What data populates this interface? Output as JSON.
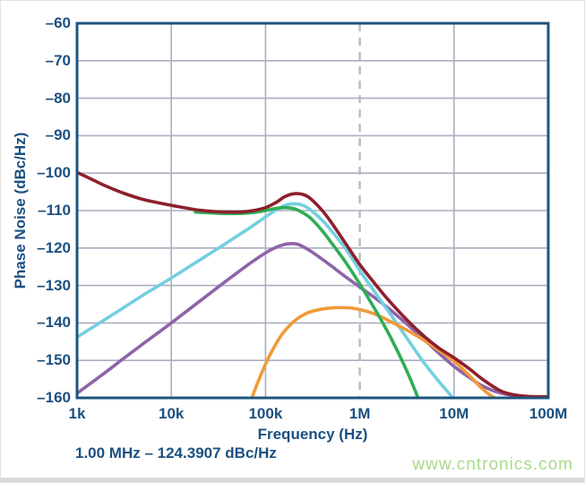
{
  "chart_data": {
    "type": "line",
    "title": "",
    "xlabel": "Frequency (Hz)",
    "ylabel": "Phase Noise (dBc/Hz)",
    "x_scale": "log",
    "xlim": [
      1000,
      100000000
    ],
    "ylim": [
      -160,
      -60
    ],
    "grid": true,
    "legend": false,
    "x_ticks": [
      {
        "value": 1000,
        "label": "1k"
      },
      {
        "value": 10000,
        "label": "10k"
      },
      {
        "value": 100000,
        "label": "100k"
      },
      {
        "value": 1000000,
        "label": "1M"
      },
      {
        "value": 10000000,
        "label": "10M"
      },
      {
        "value": 100000000,
        "label": "100M"
      }
    ],
    "y_ticks": [
      {
        "value": -60,
        "label": "–60"
      },
      {
        "value": -70,
        "label": "–70"
      },
      {
        "value": -80,
        "label": "–80"
      },
      {
        "value": -90,
        "label": "–90"
      },
      {
        "value": -100,
        "label": "–100"
      },
      {
        "value": -110,
        "label": "–110"
      },
      {
        "value": -120,
        "label": "–120"
      },
      {
        "value": -130,
        "label": "–130"
      },
      {
        "value": -140,
        "label": "–140"
      },
      {
        "value": -150,
        "label": "–150"
      },
      {
        "value": -160,
        "label": "–160"
      }
    ],
    "marker_line": {
      "x": 1000000,
      "style": "dashed",
      "color": "#bababa"
    },
    "annotation": "1.00 MHz – 124.3907 dBc/Hz",
    "series": [
      {
        "name": "purple",
        "color": "#8f63a9",
        "points": [
          [
            1000,
            -158.8
          ],
          [
            2000,
            -153.2
          ],
          [
            3000,
            -149.8
          ],
          [
            5000,
            -145.6
          ],
          [
            10000,
            -140.0
          ],
          [
            20000,
            -134.2
          ],
          [
            30000,
            -130.8
          ],
          [
            50000,
            -126.6
          ],
          [
            70000,
            -123.9
          ],
          [
            100000,
            -121.3
          ],
          [
            130000,
            -119.8
          ],
          [
            170000,
            -118.9
          ],
          [
            220000,
            -119.0
          ],
          [
            300000,
            -120.8
          ],
          [
            400000,
            -123.0
          ],
          [
            500000,
            -124.8
          ],
          [
            700000,
            -127.6
          ],
          [
            1000000,
            -130.4
          ],
          [
            1500000,
            -133.6
          ],
          [
            2000000,
            -136.0
          ],
          [
            3000000,
            -139.8
          ],
          [
            4000000,
            -142.6
          ],
          [
            5000000,
            -144.8
          ],
          [
            7000000,
            -148.2
          ],
          [
            10000000,
            -151.6
          ],
          [
            15000000,
            -154.8
          ],
          [
            20000000,
            -156.8
          ],
          [
            30000000,
            -158.6
          ],
          [
            50000000,
            -159.6
          ],
          [
            70000000,
            -159.9
          ]
        ]
      },
      {
        "name": "cyan",
        "color": "#74cfe0",
        "points": [
          [
            1000,
            -143.8
          ],
          [
            2000,
            -139.0
          ],
          [
            3000,
            -136.2
          ],
          [
            5000,
            -132.6
          ],
          [
            10000,
            -128.0
          ],
          [
            20000,
            -123.2
          ],
          [
            30000,
            -120.4
          ],
          [
            50000,
            -116.8
          ],
          [
            70000,
            -114.4
          ],
          [
            100000,
            -111.7
          ],
          [
            130000,
            -109.8
          ],
          [
            160000,
            -108.6
          ],
          [
            200000,
            -108.2
          ],
          [
            250000,
            -108.6
          ],
          [
            300000,
            -109.8
          ],
          [
            400000,
            -112.6
          ],
          [
            500000,
            -115.4
          ],
          [
            700000,
            -120.0
          ],
          [
            1000000,
            -126.0
          ],
          [
            1500000,
            -132.4
          ],
          [
            2000000,
            -136.8
          ],
          [
            3000000,
            -143.2
          ],
          [
            4000000,
            -147.8
          ],
          [
            5000000,
            -151.2
          ],
          [
            7000000,
            -155.8
          ],
          [
            9000000,
            -159.0
          ],
          [
            9600000,
            -160.0
          ]
        ]
      },
      {
        "name": "orange",
        "color": "#f09a38",
        "points": [
          [
            72000,
            -160.0
          ],
          [
            80000,
            -156.8
          ],
          [
            100000,
            -151.0
          ],
          [
            120000,
            -147.0
          ],
          [
            150000,
            -143.0
          ],
          [
            200000,
            -139.6
          ],
          [
            250000,
            -137.9
          ],
          [
            300000,
            -137.0
          ],
          [
            400000,
            -136.3
          ],
          [
            500000,
            -136.0
          ],
          [
            600000,
            -135.9
          ],
          [
            800000,
            -136.0
          ],
          [
            1000000,
            -136.4
          ],
          [
            1300000,
            -137.2
          ],
          [
            1700000,
            -138.4
          ],
          [
            2000000,
            -139.3
          ],
          [
            3000000,
            -141.6
          ],
          [
            4000000,
            -143.4
          ],
          [
            5000000,
            -144.9
          ],
          [
            7000000,
            -147.4
          ],
          [
            10000000,
            -150.2
          ],
          [
            13000000,
            -152.8
          ],
          [
            17000000,
            -155.8
          ],
          [
            20000000,
            -157.6
          ],
          [
            24000000,
            -159.2
          ],
          [
            27000000,
            -160.0
          ]
        ]
      },
      {
        "name": "green",
        "color": "#2fad55",
        "points": [
          [
            18000,
            -110.4
          ],
          [
            25000,
            -110.6
          ],
          [
            40000,
            -110.8
          ],
          [
            60000,
            -110.7
          ],
          [
            80000,
            -110.4
          ],
          [
            100000,
            -110.0
          ],
          [
            130000,
            -109.4
          ],
          [
            160000,
            -109.2
          ],
          [
            200000,
            -109.5
          ],
          [
            250000,
            -110.6
          ],
          [
            300000,
            -112.0
          ],
          [
            400000,
            -115.4
          ],
          [
            500000,
            -118.6
          ],
          [
            700000,
            -123.6
          ],
          [
            1000000,
            -129.6
          ],
          [
            1500000,
            -137.0
          ],
          [
            2000000,
            -142.6
          ],
          [
            2500000,
            -147.4
          ],
          [
            3000000,
            -151.6
          ],
          [
            3500000,
            -155.4
          ],
          [
            4000000,
            -159.0
          ],
          [
            4150000,
            -160.0
          ]
        ]
      },
      {
        "name": "dark-red",
        "color": "#8e1f2d",
        "points": [
          [
            1000,
            -99.8
          ],
          [
            1500,
            -101.9
          ],
          [
            2000,
            -103.4
          ],
          [
            3000,
            -105.2
          ],
          [
            5000,
            -107.0
          ],
          [
            10000,
            -108.6
          ],
          [
            15000,
            -109.4
          ],
          [
            20000,
            -109.9
          ],
          [
            30000,
            -110.3
          ],
          [
            50000,
            -110.4
          ],
          [
            70000,
            -110.1
          ],
          [
            100000,
            -109.2
          ],
          [
            130000,
            -107.8
          ],
          [
            160000,
            -106.3
          ],
          [
            200000,
            -105.5
          ],
          [
            250000,
            -105.7
          ],
          [
            300000,
            -106.8
          ],
          [
            400000,
            -110.0
          ],
          [
            500000,
            -113.2
          ],
          [
            700000,
            -118.6
          ],
          [
            1000000,
            -124.4
          ],
          [
            1500000,
            -130.0
          ],
          [
            2000000,
            -133.8
          ],
          [
            3000000,
            -138.6
          ],
          [
            4000000,
            -141.7
          ],
          [
            5000000,
            -143.9
          ],
          [
            7000000,
            -146.8
          ],
          [
            10000000,
            -149.3
          ],
          [
            15000000,
            -152.5
          ],
          [
            20000000,
            -155.0
          ],
          [
            30000000,
            -157.9
          ],
          [
            40000000,
            -159.0
          ],
          [
            60000000,
            -159.6
          ],
          [
            100000000,
            -159.7
          ]
        ]
      }
    ]
  },
  "watermark": {
    "text": "www.cntronics.com",
    "color": "#a9d98c"
  },
  "colors": {
    "axis_text": "#1b5080",
    "plot_border": "#1d567f",
    "grid": "#abaec0",
    "background": "#ffffff"
  }
}
